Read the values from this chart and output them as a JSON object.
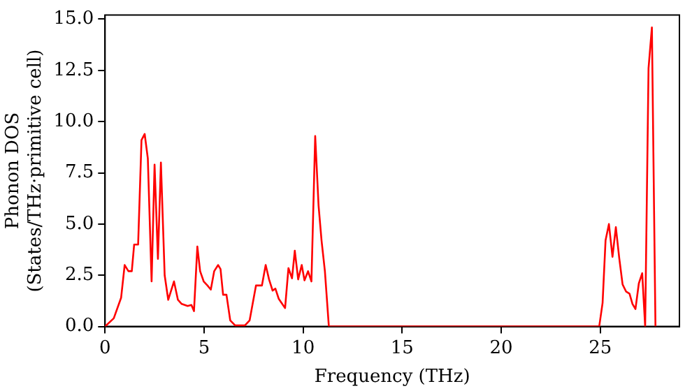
{
  "chart_data": {
    "type": "line",
    "xlabel": "Frequency (THz)",
    "ylabel": "Phonon DOS\n(States/THz·primitive cell)",
    "xlim": [
      0,
      29
    ],
    "xticks": [
      0,
      5,
      10,
      15,
      20,
      25
    ],
    "ylim": [
      0,
      15.2
    ],
    "yticks": [
      {
        "value": 0,
        "label": "0.0"
      },
      {
        "value": 2.5,
        "label": "2.5"
      },
      {
        "value": 5,
        "label": "5.0"
      },
      {
        "value": 7.5,
        "label": "7.5"
      },
      {
        "value": 10,
        "label": "10.0"
      },
      {
        "value": 12.5,
        "label": "12.5"
      },
      {
        "value": 15,
        "label": "15.0"
      }
    ],
    "legend": false,
    "marker": "none",
    "line_style": "solid",
    "series": [
      {
        "color": "#ff0000",
        "x": [
          0,
          0.44,
          0.81,
          0.99,
          1.18,
          1.35,
          1.47,
          1.67,
          1.84,
          2.0,
          2.16,
          2.35,
          2.5,
          2.67,
          2.82,
          3.01,
          3.19,
          3.48,
          3.68,
          3.87,
          4.17,
          4.36,
          4.49,
          4.66,
          4.8,
          4.98,
          5.17,
          5.34,
          5.51,
          5.71,
          5.83,
          5.96,
          6.13,
          6.32,
          6.57,
          7.06,
          7.3,
          7.62,
          7.92,
          8.11,
          8.28,
          8.46,
          8.6,
          8.77,
          9.09,
          9.26,
          9.44,
          9.58,
          9.75,
          9.93,
          10.07,
          10.25,
          10.42,
          10.61,
          10.78,
          10.93,
          11.1,
          11.3,
          24.95,
          25.12,
          25.27,
          25.44,
          25.62,
          25.79,
          25.96,
          26.13,
          26.31,
          26.48,
          26.63,
          26.78,
          26.95,
          27.12,
          27.27,
          27.44,
          27.61,
          27.79
        ],
        "values": [
          0,
          0.4,
          1.4,
          3.0,
          2.7,
          2.7,
          4.0,
          4.0,
          9.1,
          9.4,
          8.2,
          2.2,
          7.9,
          3.3,
          8.0,
          2.5,
          1.3,
          2.2,
          1.3,
          1.1,
          1.0,
          1.05,
          0.75,
          3.9,
          2.7,
          2.2,
          2.0,
          1.8,
          2.7,
          3.0,
          2.8,
          1.55,
          1.55,
          0.3,
          0.05,
          0.05,
          0.3,
          2.0,
          2.0,
          3.0,
          2.3,
          1.75,
          1.85,
          1.35,
          0.9,
          2.85,
          2.35,
          3.7,
          2.3,
          3.0,
          2.25,
          2.7,
          2.2,
          9.3,
          5.9,
          4.2,
          2.7,
          0,
          0,
          1.15,
          4.2,
          5.0,
          3.4,
          4.85,
          3.35,
          2.05,
          1.7,
          1.6,
          1.1,
          0.85,
          2.1,
          2.6,
          0,
          12.6,
          14.6,
          0
        ]
      }
    ]
  }
}
